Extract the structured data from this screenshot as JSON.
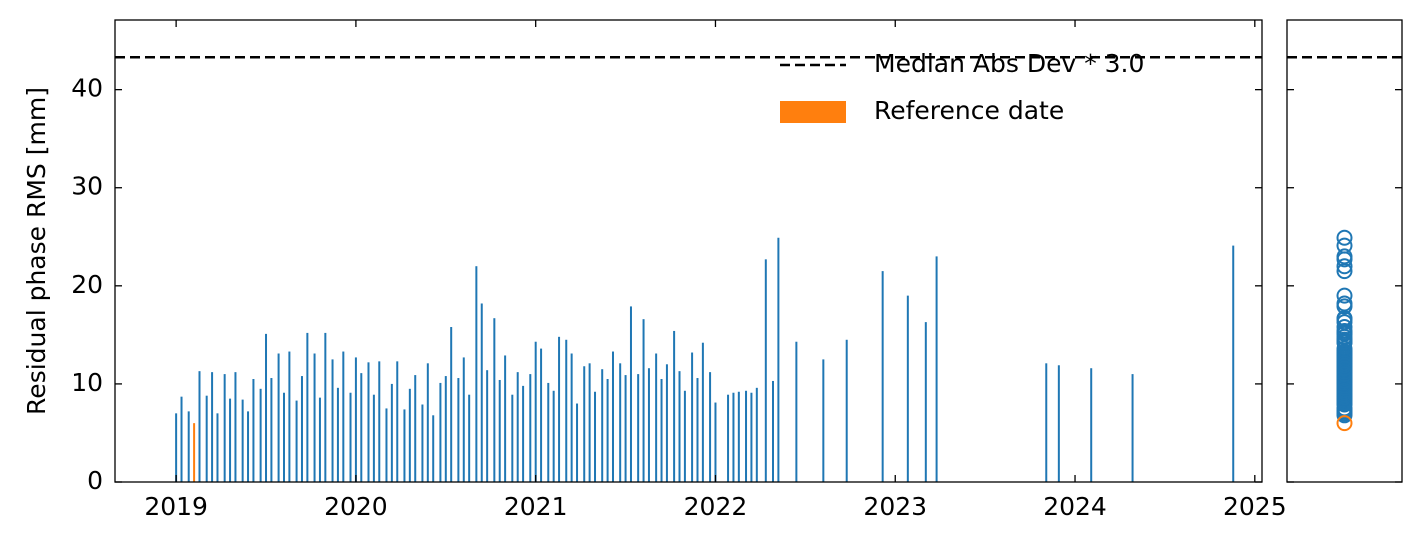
{
  "chart_data": {
    "type": "bar",
    "y_label": "Residual phase RMS [mm]",
    "xlim": [
      2018.66,
      2025.04
    ],
    "ylim": [
      0,
      47.1
    ],
    "xticks": [
      2019,
      2020,
      2021,
      2022,
      2023,
      2024,
      2025
    ],
    "yticks": [
      0,
      10,
      20,
      30,
      40
    ],
    "legend": "upper right",
    "bars": {
      "color": "#1f77b4",
      "x": [
        2019.0,
        2019.03,
        2019.07,
        2019.13,
        2019.17,
        2019.2,
        2019.23,
        2019.27,
        2019.3,
        2019.33,
        2019.37,
        2019.4,
        2019.43,
        2019.47,
        2019.5,
        2019.53,
        2019.57,
        2019.6,
        2019.63,
        2019.67,
        2019.7,
        2019.73,
        2019.77,
        2019.8,
        2019.83,
        2019.87,
        2019.9,
        2019.93,
        2019.97,
        2020.0,
        2020.03,
        2020.07,
        2020.1,
        2020.13,
        2020.17,
        2020.2,
        2020.23,
        2020.27,
        2020.3,
        2020.33,
        2020.37,
        2020.4,
        2020.43,
        2020.47,
        2020.5,
        2020.53,
        2020.57,
        2020.6,
        2020.63,
        2020.67,
        2020.7,
        2020.73,
        2020.77,
        2020.8,
        2020.83,
        2020.87,
        2020.9,
        2020.93,
        2020.97,
        2021.0,
        2021.03,
        2021.07,
        2021.1,
        2021.13,
        2021.17,
        2021.2,
        2021.23,
        2021.27,
        2021.3,
        2021.33,
        2021.37,
        2021.4,
        2021.43,
        2021.47,
        2021.5,
        2021.53,
        2021.57,
        2021.6,
        2021.63,
        2021.67,
        2021.7,
        2021.73,
        2021.77,
        2021.8,
        2021.83,
        2021.87,
        2021.9,
        2021.93,
        2021.97,
        2022.0,
        2022.07,
        2022.1,
        2022.13,
        2022.17,
        2022.2,
        2022.23,
        2022.28,
        2022.32,
        2022.35,
        2022.45,
        2022.6,
        2022.73,
        2022.93,
        2023.07,
        2023.17,
        2023.23,
        2023.84,
        2023.91,
        2024.09,
        2024.32,
        2024.88
      ],
      "values": [
        7.0,
        8.7,
        7.2,
        11.3,
        8.8,
        11.2,
        7.0,
        11.0,
        8.5,
        11.2,
        8.4,
        7.2,
        10.5,
        9.5,
        15.1,
        10.6,
        13.1,
        9.1,
        13.3,
        8.3,
        10.8,
        15.2,
        13.1,
        8.6,
        15.2,
        12.5,
        9.6,
        13.3,
        9.1,
        12.7,
        11.1,
        12.2,
        8.9,
        12.3,
        7.5,
        10.0,
        12.3,
        7.4,
        9.5,
        10.9,
        7.9,
        12.1,
        6.8,
        10.1,
        10.8,
        15.8,
        10.6,
        12.7,
        8.9,
        22.0,
        18.2,
        11.4,
        16.7,
        10.4,
        12.9,
        8.9,
        11.2,
        9.8,
        11.0,
        14.3,
        13.6,
        10.1,
        9.3,
        14.8,
        14.5,
        13.1,
        8.0,
        11.8,
        12.1,
        9.2,
        11.5,
        10.5,
        13.3,
        12.1,
        10.9,
        17.9,
        11.0,
        16.6,
        11.6,
        13.1,
        10.5,
        12.0,
        15.4,
        11.3,
        9.3,
        13.2,
        10.6,
        14.2,
        11.2,
        8.1,
        8.9,
        9.1,
        9.2,
        9.3,
        9.1,
        9.6,
        22.7,
        10.3,
        24.9,
        14.3,
        12.5,
        14.5,
        21.5,
        19.0,
        16.3,
        23.0,
        12.1,
        11.9,
        11.6,
        11.0,
        24.1
      ]
    },
    "reference": {
      "name": "Reference date",
      "color": "#ff7f0e",
      "x": 2019.1,
      "value": 6.0
    },
    "threshold": {
      "name": "Median Abs Dev * 3.0",
      "value": 43.3,
      "color": "#000000"
    }
  }
}
